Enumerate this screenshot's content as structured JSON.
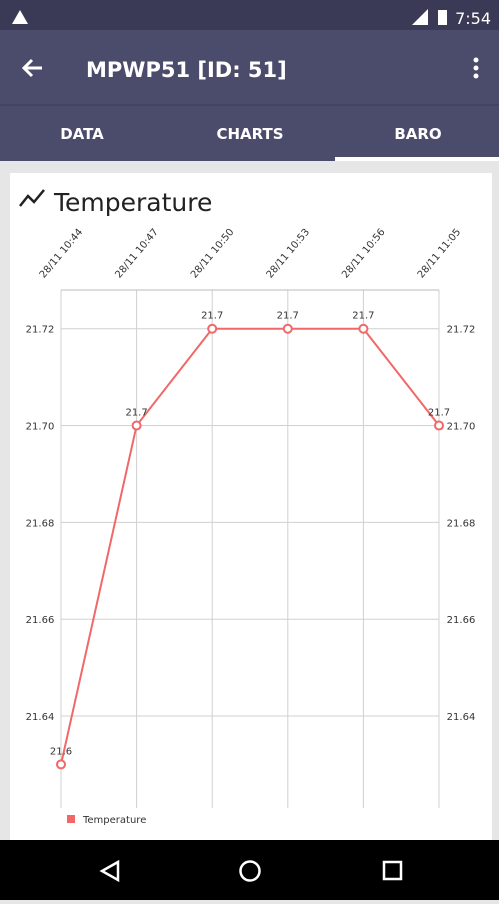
{
  "status_bar": {
    "time": "7:54"
  },
  "app_bar": {
    "title": "MPWP51 [ID: 51]"
  },
  "tabs": [
    "DATA",
    "CHARTS",
    "BARO"
  ],
  "chart_data": {
    "type": "line",
    "title": "Temperature",
    "categories": [
      "28/11 10:44",
      "28/11 10:47",
      "28/11 10:50",
      "28/11 10:53",
      "28/11 10:56",
      "28/11 11:05"
    ],
    "series": [
      {
        "name": "Temperature",
        "color": "#f06868",
        "values": [
          21.63,
          21.7,
          21.72,
          21.72,
          21.72,
          21.7
        ],
        "value_labels": [
          "21.6",
          "21.7",
          "21.7",
          "21.7",
          "21.7",
          "21.7"
        ]
      }
    ],
    "ylim": [
      21.621,
      21.728
    ],
    "yticks": [
      {
        "value": 21.64,
        "label": "21.64"
      },
      {
        "value": 21.66,
        "label": "21.66"
      },
      {
        "value": 21.68,
        "label": "21.68"
      },
      {
        "value": 21.7,
        "label": "21.70"
      },
      {
        "value": 21.72,
        "label": "21.72"
      }
    ],
    "grid": true,
    "legend": "bottom-left"
  }
}
